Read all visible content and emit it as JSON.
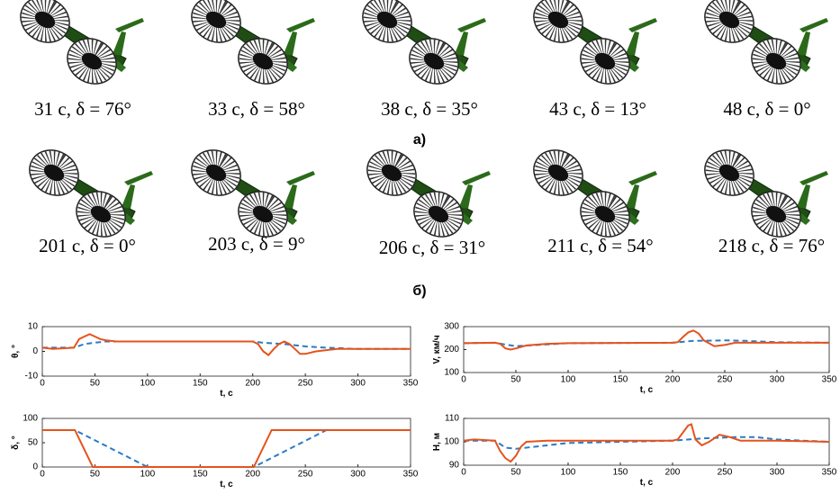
{
  "captions_a": [
    "31 с, δ = 76°",
    "33 с, δ = 58°",
    "38 с, δ = 35°",
    "43 с, δ = 13°",
    "48 с, δ = 0°"
  ],
  "panel_a": "а)",
  "captions_b": [
    "201 с, δ = 0°",
    "203 с, δ = 9°",
    "206 с, δ = 31°",
    "211 с, δ = 54°",
    "218 с, δ = 76°"
  ],
  "panel_b": "б)",
  "chart_data": [
    {
      "type": "line",
      "ylabel": "θ, °",
      "xlabel": "t, c",
      "xlim": [
        0,
        350
      ],
      "xticks": [
        0,
        50,
        100,
        150,
        200,
        250,
        300,
        350
      ],
      "ylim": [
        -10,
        10
      ],
      "yticks": [
        -10,
        0,
        10
      ],
      "series": [
        {
          "color": "#2b7bc4",
          "dash": true,
          "x": [
            0,
            30,
            40,
            50,
            60,
            100,
            200,
            210,
            230,
            250,
            270,
            300,
            350
          ],
          "values": [
            1.5,
            1.5,
            3,
            3.5,
            4,
            4,
            4,
            3.5,
            3,
            2,
            1.5,
            1,
            1
          ]
        },
        {
          "color": "#e5531c",
          "dash": false,
          "x": [
            0,
            10,
            30,
            35,
            40,
            45,
            50,
            55,
            60,
            70,
            100,
            200,
            205,
            210,
            215,
            220,
            225,
            230,
            235,
            240,
            245,
            250,
            260,
            280,
            300,
            350
          ],
          "values": [
            1.5,
            1,
            1.5,
            5,
            6,
            7,
            6,
            5,
            4.5,
            4,
            4,
            4,
            3,
            0,
            -1.5,
            1,
            3,
            4,
            3,
            1,
            -1,
            -1,
            0,
            1,
            1,
            1
          ]
        }
      ]
    },
    {
      "type": "line",
      "ylabel": "V, км/ч",
      "xlabel": "t, c",
      "xlim": [
        0,
        350
      ],
      "xticks": [
        0,
        50,
        100,
        150,
        200,
        250,
        300,
        350
      ],
      "ylim": [
        100,
        300
      ],
      "yticks": [
        100,
        200,
        300
      ],
      "series": [
        {
          "color": "#2b7bc4",
          "dash": true,
          "x": [
            0,
            30,
            40,
            50,
            70,
            100,
            200,
            220,
            250,
            270,
            300,
            350
          ],
          "values": [
            228,
            230,
            222,
            215,
            220,
            228,
            230,
            238,
            240,
            238,
            232,
            230
          ]
        },
        {
          "color": "#e5531c",
          "dash": false,
          "x": [
            0,
            30,
            35,
            40,
            45,
            50,
            60,
            80,
            100,
            200,
            205,
            210,
            215,
            220,
            225,
            230,
            240,
            250,
            260,
            300,
            350
          ],
          "values": [
            228,
            230,
            225,
            205,
            200,
            205,
            218,
            225,
            228,
            230,
            232,
            255,
            275,
            283,
            270,
            240,
            215,
            220,
            230,
            230,
            230
          ]
        }
      ]
    },
    {
      "type": "line",
      "ylabel": "δ, °",
      "xlabel": "t, c",
      "xlim": [
        0,
        350
      ],
      "xticks": [
        0,
        50,
        100,
        150,
        200,
        250,
        300,
        350
      ],
      "ylim": [
        0,
        100
      ],
      "yticks": [
        0,
        50,
        100
      ],
      "series": [
        {
          "color": "#2b7bc4",
          "dash": true,
          "x": [
            0,
            31,
            100,
            201,
            270
          ],
          "values": [
            76,
            76,
            0,
            0,
            76
          ]
        },
        {
          "color": "#e5531c",
          "dash": false,
          "x": [
            0,
            31,
            48,
            201,
            218,
            350
          ],
          "values": [
            76,
            76,
            0,
            0,
            76,
            76
          ]
        }
      ]
    },
    {
      "type": "line",
      "ylabel": "H, м",
      "xlabel": "t, c",
      "xlim": [
        0,
        350
      ],
      "xticks": [
        0,
        50,
        100,
        150,
        200,
        250,
        300,
        350
      ],
      "ylim": [
        90,
        110
      ],
      "yticks": [
        90,
        100,
        110
      ],
      "series": [
        {
          "color": "#2b7bc4",
          "dash": true,
          "x": [
            0,
            30,
            40,
            50,
            70,
            100,
            200,
            230,
            260,
            280,
            300,
            350
          ],
          "values": [
            100.5,
            100.5,
            97.5,
            97,
            98,
            99.5,
            100.5,
            101.5,
            102,
            102,
            101,
            100
          ]
        },
        {
          "color": "#e5531c",
          "dash": false,
          "x": [
            0,
            10,
            30,
            35,
            40,
            45,
            50,
            55,
            60,
            80,
            200,
            205,
            210,
            215,
            218,
            222,
            228,
            235,
            245,
            255,
            265,
            300,
            350
          ],
          "values": [
            100.5,
            101,
            100.5,
            96,
            93,
            91.5,
            94,
            98,
            100,
            100.5,
            100.5,
            101,
            104,
            107,
            107.5,
            101,
            98.5,
            100,
            103,
            102,
            100.5,
            100.5,
            100
          ]
        }
      ]
    }
  ]
}
